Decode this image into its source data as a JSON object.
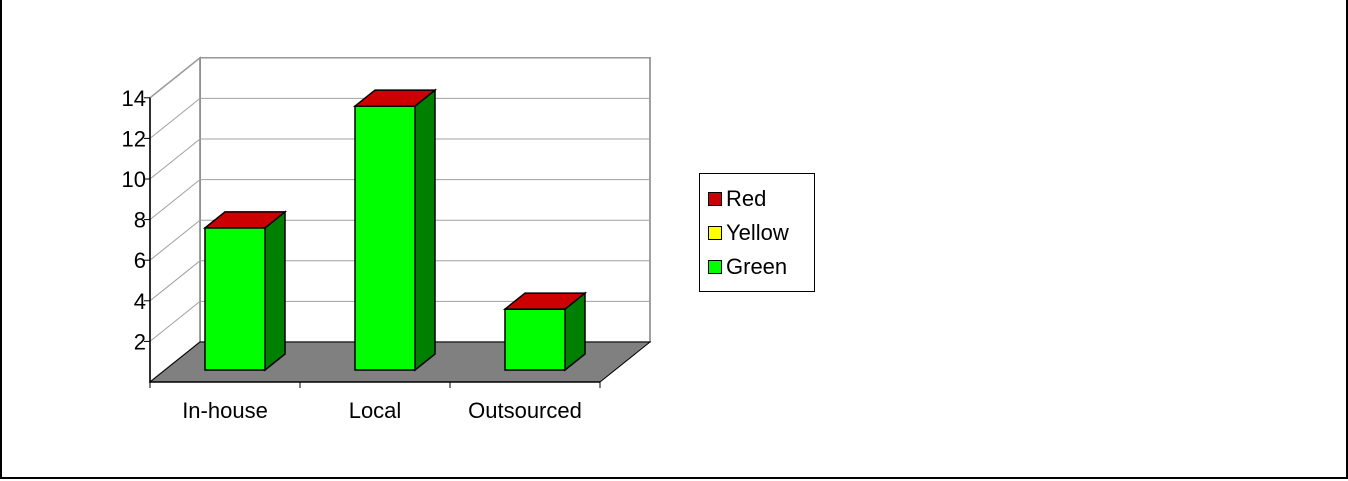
{
  "chart_data": {
    "type": "bar",
    "style": "3d-stacked-column",
    "categories": [
      "In-house",
      "Local",
      "Outsourced"
    ],
    "series": [
      {
        "name": "Red",
        "color": "#cc0000",
        "values": [
          0.2,
          0.2,
          0.2
        ]
      },
      {
        "name": "Yellow",
        "color": "#ffff00",
        "values": [
          0,
          0,
          0
        ]
      },
      {
        "name": "Green",
        "color": "#00ff00",
        "values": [
          7,
          13,
          3
        ]
      }
    ],
    "title": "",
    "xlabel": "",
    "ylabel": "",
    "ylim": [
      0,
      14
    ],
    "yticks": [
      2,
      4,
      6,
      8,
      10,
      12,
      14
    ],
    "grid": true,
    "legend_position": "right",
    "colors": {
      "wall": "#ffffff",
      "floor": "#808080",
      "green_side": "#008000",
      "red_top": "#cc0000"
    }
  }
}
